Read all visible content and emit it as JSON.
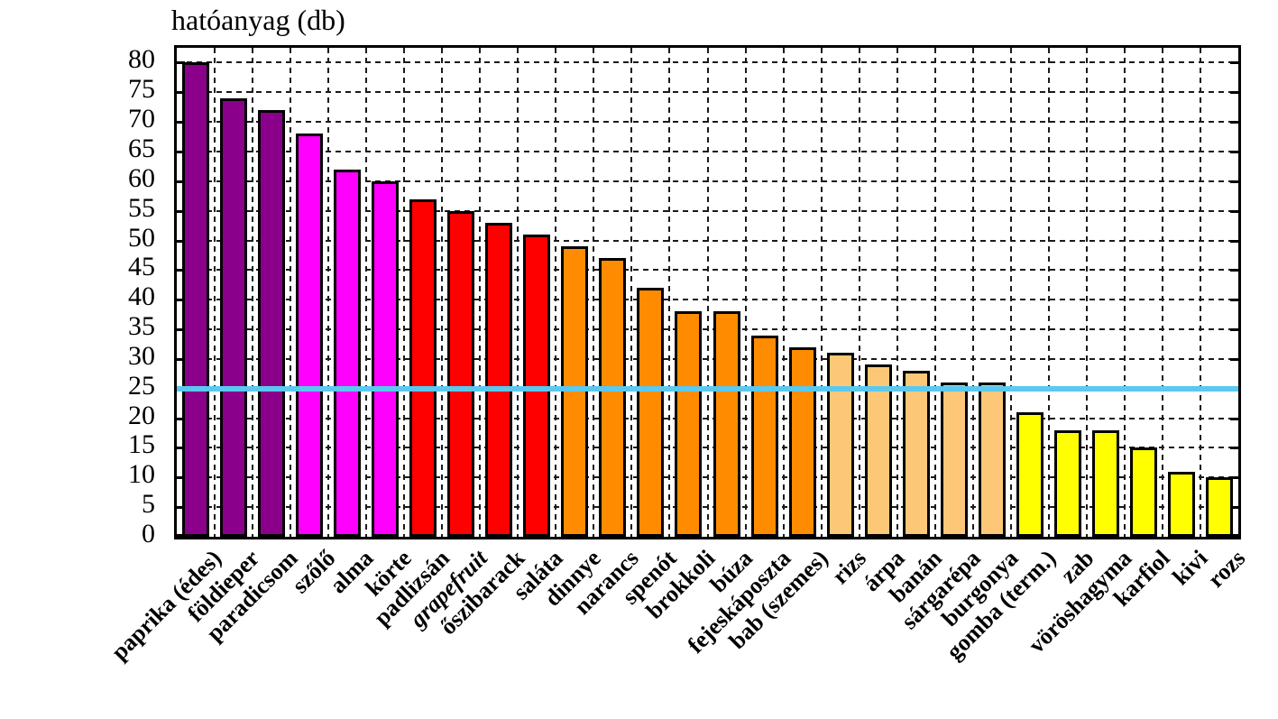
{
  "chart_data": {
    "type": "bar",
    "title": "hatóanyag (db)",
    "ylabel": "hatóanyag (db)",
    "xlabel": "",
    "ylim": [
      0,
      82.5
    ],
    "ytick_step": 5,
    "yticks": [
      0,
      5,
      10,
      15,
      20,
      25,
      30,
      35,
      40,
      45,
      50,
      55,
      60,
      65,
      70,
      75,
      80
    ],
    "grid": "dashed-both-axes",
    "legend_position": "none",
    "reference_line": {
      "value": 25,
      "color": "#5BC8F0"
    },
    "categories": [
      "paprika (édes)",
      "földieper",
      "paradicsom",
      "szőlő",
      "alma",
      "körte",
      "padlizsán",
      "grapefruit",
      "őszibarack",
      "saláta",
      "dinnye",
      "narancs",
      "spenót",
      "brokkoli",
      "búza",
      "fejeskáposzta",
      "bab (szemes)",
      "rizs",
      "árpa",
      "banán",
      "sárgarépa",
      "burgonya",
      "gomba (term.)",
      "zab",
      "vöröshagyma",
      "karfiol",
      "kivi",
      "rozs"
    ],
    "values": [
      80,
      74,
      72,
      68,
      62,
      60,
      57,
      55,
      53,
      51,
      49,
      47,
      42,
      38,
      38,
      34,
      32,
      31,
      29,
      28,
      26,
      26,
      21,
      18,
      18,
      15,
      11,
      10
    ],
    "bar_colors": [
      "#8B008B",
      "#8B008B",
      "#8B008B",
      "#FF00FF",
      "#FF00FF",
      "#FF00FF",
      "#FF0000",
      "#FF0000",
      "#FF0000",
      "#FF0000",
      "#FF8C00",
      "#FF8C00",
      "#FF8C00",
      "#FF8C00",
      "#FF8C00",
      "#FF8C00",
      "#FF8C00",
      "#FCC878",
      "#FCC878",
      "#FCC878",
      "#FCC878",
      "#FCC878",
      "#FFFF00",
      "#FFFF00",
      "#FFFF00",
      "#FFFF00",
      "#FFFF00",
      "#FFFF00"
    ],
    "italic_categories": [
      "grapefruit"
    ],
    "colors": {
      "purple": "#8B008B",
      "magenta": "#FF00FF",
      "red": "#FF0000",
      "orange": "#FF8C00",
      "light_orange": "#FCC878",
      "yellow": "#FFFF00",
      "reference_line": "#5BC8F0",
      "grid": "#1a1a1a",
      "bar_border": "#000000"
    }
  }
}
